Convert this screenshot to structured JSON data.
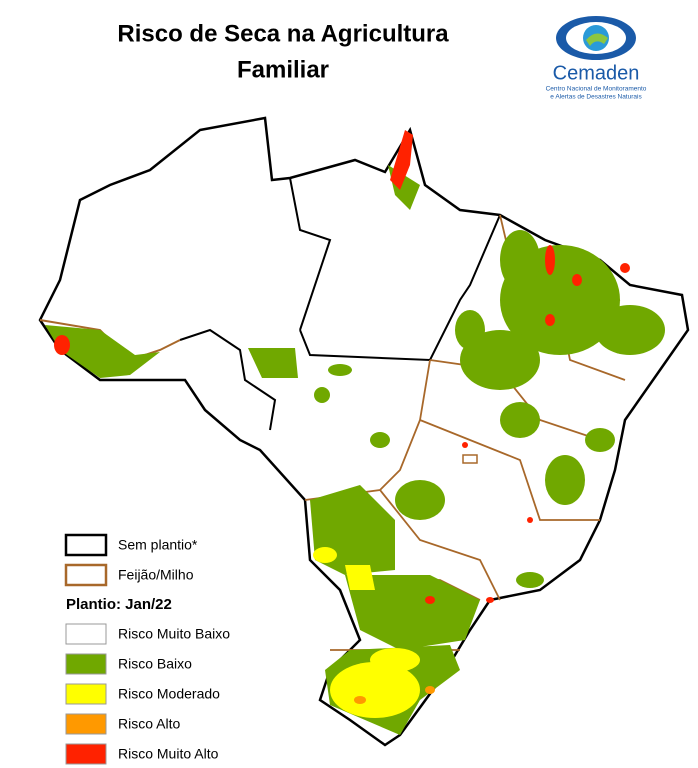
{
  "header": {
    "title_lines": [
      "Risco de Seca na Agricultura",
      "Familiar"
    ]
  },
  "logo": {
    "name": "Cemaden",
    "subtitle_lines": [
      "Centro Nacional de Monitoramento",
      "e Alertas de Desastres Naturais"
    ]
  },
  "legend": {
    "boundaries": [
      {
        "label": "Sem plantio*",
        "color": "#000000"
      },
      {
        "label": "Feijão/Milho",
        "color": "#a8682a"
      }
    ],
    "heading": "Plantio: Jan/22",
    "classes": [
      {
        "label": "Risco Muito Baixo",
        "color": "#ffffff"
      },
      {
        "label": "Risco Baixo",
        "color": "#70a800"
      },
      {
        "label": "Risco Moderado",
        "color": "#ffff00"
      },
      {
        "label": "Risco Alto",
        "color": "#ff9900"
      },
      {
        "label": "Risco Muito Alto",
        "color": "#ff2200"
      }
    ]
  }
}
